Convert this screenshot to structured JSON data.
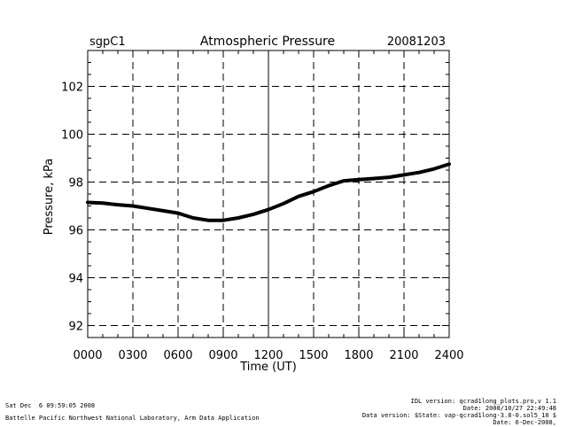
{
  "header": {
    "site": "sgpC1",
    "title": "Atmospheric Pressure",
    "date": "20081203"
  },
  "chart_data": {
    "type": "line",
    "title": "Atmospheric Pressure",
    "xlabel": "Time (UT)",
    "ylabel": "Pressure, kPa",
    "xlim": [
      0,
      24
    ],
    "ylim": [
      91.5,
      103.5
    ],
    "xticks": [
      0,
      3,
      6,
      9,
      12,
      15,
      18,
      21,
      24
    ],
    "xtick_labels": [
      "0000",
      "0300",
      "0600",
      "0900",
      "1200",
      "1500",
      "1800",
      "2100",
      "2400"
    ],
    "yticks": [
      92,
      94,
      96,
      98,
      100,
      102
    ],
    "ytick_labels": [
      "92",
      "94",
      "96",
      "98",
      "100",
      "102"
    ],
    "grid": true,
    "line_color": "#000000",
    "series": [
      {
        "x": [
          0,
          1,
          2,
          3,
          4,
          5,
          6,
          7,
          8,
          9,
          10,
          11,
          12,
          13,
          14,
          15,
          16,
          17,
          18,
          19,
          20,
          21,
          22,
          23,
          24
        ],
        "values": [
          97.15,
          97.12,
          97.05,
          97.0,
          96.9,
          96.8,
          96.7,
          96.5,
          96.4,
          96.4,
          96.5,
          96.65,
          96.85,
          97.1,
          97.4,
          97.6,
          97.85,
          98.05,
          98.1,
          98.15,
          98.2,
          98.3,
          98.4,
          98.55,
          98.75
        ]
      }
    ]
  },
  "footer": {
    "run_date": "Sat Dec  6 09:59:05 2008",
    "lab": "Battelle Pacific Northwest National Laboratory, Arm Data Application",
    "idl_version": "IDL version: qcrad1long_plots.pro,v 1.1",
    "idl_date": "Date: 2008/10/27 22:49:48",
    "data_version": "Data version: $State: vap-qcrad1long-3.8-0.sol5_10 $",
    "data_date": "Date: 6-Dec-2008,"
  }
}
